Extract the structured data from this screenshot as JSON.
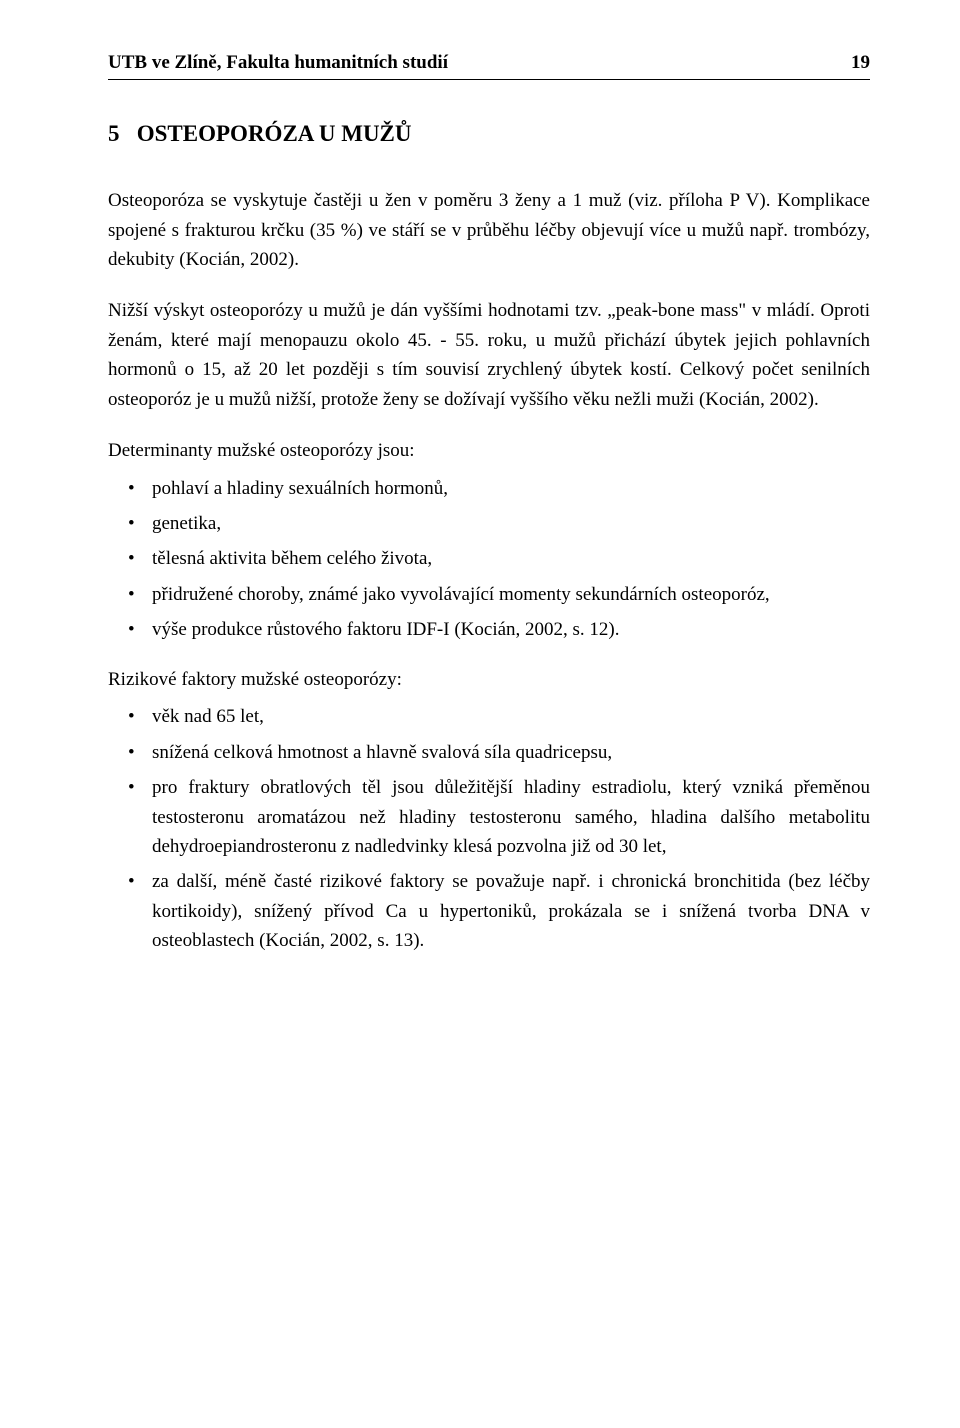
{
  "header": {
    "institution": "UTB ve Zlíně, Fakulta humanitních studií",
    "page_number": "19"
  },
  "chapter": {
    "number": "5",
    "title": "OSTEOPORÓZA U MUŽŮ"
  },
  "paragraphs": {
    "p1": "Osteoporóza se vyskytuje častěji u žen v poměru 3 ženy a 1 muž (viz. příloha P V). Komplikace spojené s frakturou krčku (35 %) ve stáří se v průběhu léčby objevují více u mužů např. trombózy, dekubity (Kocián, 2002).",
    "p2": " Nižší výskyt osteoporózy u mužů je dán vyššími hodnotami tzv. „peak-bone mass\" v mládí. Oproti ženám, které mají menopauzu okolo 45. - 55. roku, u mužů přichází úbytek jejich pohlavních hormonů o 15, až 20 let později s tím souvisí zrychlený úbytek kostí. Celkový počet senilních osteoporóz je u mužů nižší, protože ženy se dožívají vyššího věku nežli muži (Kocián, 2002).",
    "p3_intro": "Determinanty mužské osteoporózy jsou:",
    "p4_intro": "Rizikové faktory mužské osteoporózy:"
  },
  "determinants": [
    "pohlaví a hladiny sexuálních hormonů,",
    "genetika,",
    "tělesná aktivita během celého života,",
    "přidružené choroby, známé jako vyvolávající momenty sekundárních osteoporóz,",
    "výše produkce růstového faktoru IDF-I (Kocián, 2002, s. 12)."
  ],
  "risk_factors": [
    "věk nad 65 let,",
    "snížená celková hmotnost a hlavně svalová síla quadricepsu,",
    "pro fraktury obratlových těl jsou důležitější hladiny estradiolu, který vzniká přeměnou testosteronu aromatázou než hladiny testosteronu samého, hladina dalšího metabolitu dehydroepiandrosteronu z nadledvinky klesá pozvolna již od 30 let,",
    "za další, méně časté rizikové faktory se považuje např. i chronická bronchitida (bez léčby kortikoidy), snížený přívod Ca u hypertoniků, prokázala se i snížená tvorba DNA v osteoblastech (Kocián, 2002, s. 13)."
  ],
  "colors": {
    "text": "#000000",
    "background": "#ffffff",
    "rule": "#000000"
  },
  "typography": {
    "body_font_family": "Times New Roman",
    "body_font_size_pt": 12,
    "title_font_size_pt": 14,
    "line_height": 1.55
  }
}
